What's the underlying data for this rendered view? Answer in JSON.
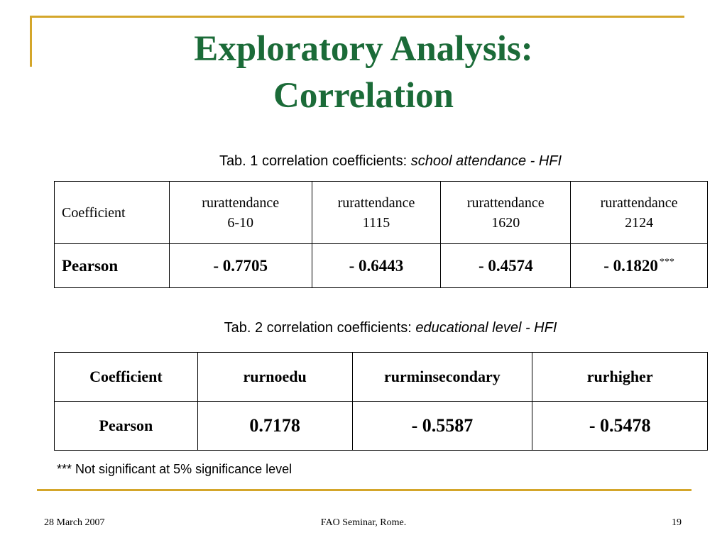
{
  "slide": {
    "title_line1": "Exploratory Analysis:",
    "title_line2": "Correlation"
  },
  "table1": {
    "caption_prefix": "Tab. 1 correlation coefficients: ",
    "caption_italic": "school attendance - HFI",
    "header": {
      "label": "Coefficient",
      "cols": [
        {
          "line1": "rurattendance",
          "line2": "6-10"
        },
        {
          "line1": "rurattendance",
          "line2": "1115"
        },
        {
          "line1": "rurattendance",
          "line2": "1620"
        },
        {
          "line1": "rurattendance",
          "line2": "2124"
        }
      ]
    },
    "row": {
      "label": "Pearson",
      "values": [
        "- 0.7705",
        "- 0.6443",
        "- 0.4574",
        "- 0.1820"
      ],
      "last_marker": "***"
    }
  },
  "table2": {
    "caption_prefix": "Tab. 2  correlation coefficients: ",
    "caption_italic": "educational level - HFI",
    "header": {
      "label": "Coefficient",
      "cols": [
        "rurnoedu",
        "rurminsecondary",
        "rurhigher"
      ]
    },
    "row": {
      "label": "Pearson",
      "values": [
        "0.7178",
        "- 0.5587",
        "- 0.5478"
      ]
    }
  },
  "note": "*** Not significant at 5% significance level",
  "footer": {
    "date": "28 March 2007",
    "center": "FAO Seminar, Rome.",
    "page": "19"
  },
  "colors": {
    "title": "#1b6b38",
    "frame": "#d4a62a"
  }
}
